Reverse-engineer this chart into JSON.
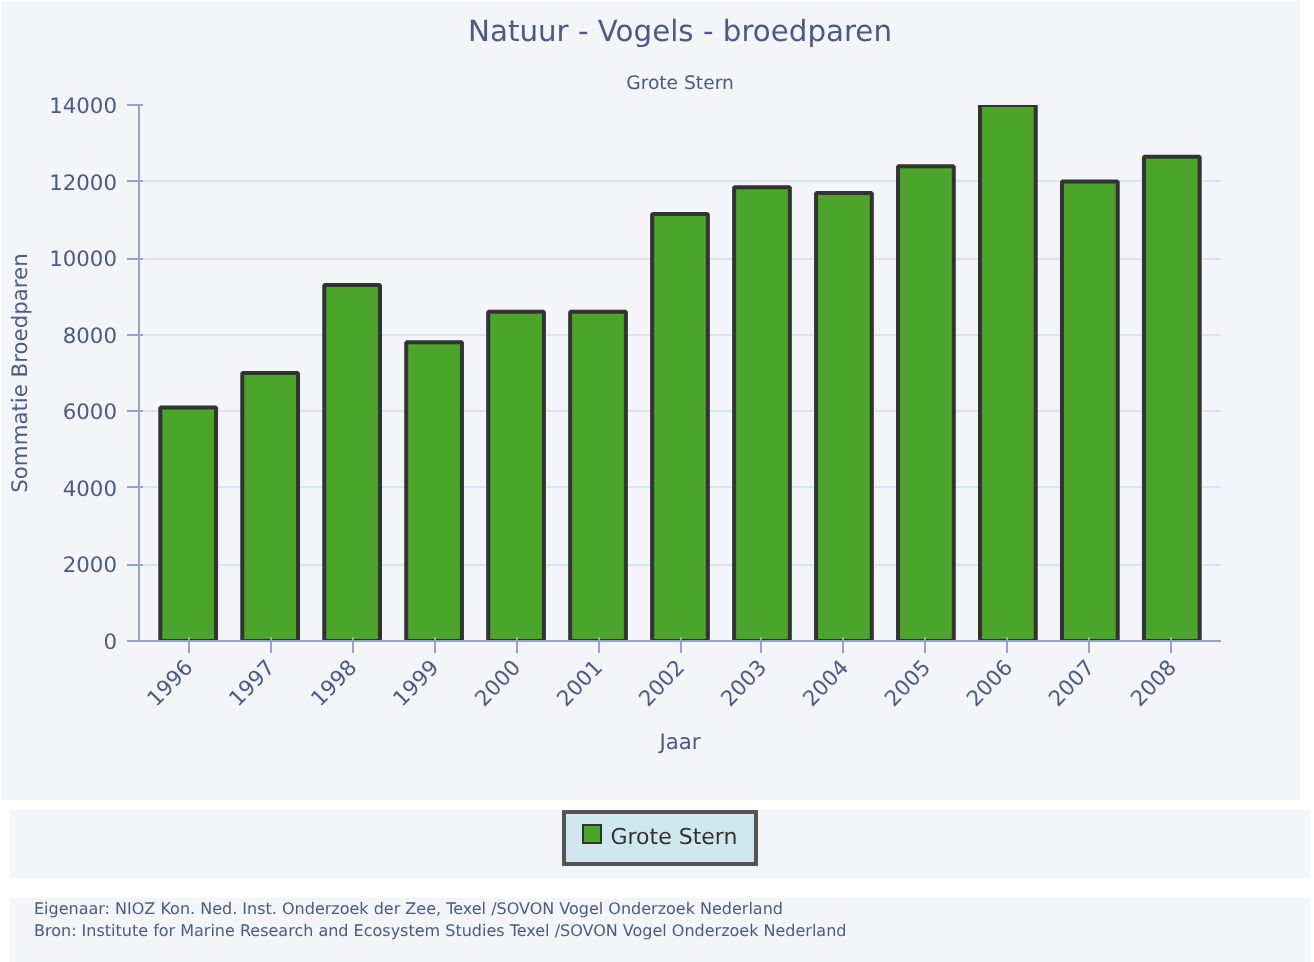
{
  "chart_data": {
    "type": "bar",
    "title": "Natuur - Vogels - broedparen",
    "subtitle": "Grote Stern",
    "xlabel": "Jaar",
    "ylabel": "Sommatie Broedparen",
    "categories": [
      "1996",
      "1997",
      "1998",
      "1999",
      "2000",
      "2001",
      "2002",
      "2003",
      "2004",
      "2005",
      "2006",
      "2007",
      "2008"
    ],
    "series": [
      {
        "name": "Grote Stern",
        "color": "#4aa52a",
        "values": [
          6100,
          7000,
          9300,
          7800,
          8600,
          8600,
          11150,
          11850,
          11700,
          12400,
          14000,
          12000,
          12650
        ]
      }
    ],
    "ylim": [
      0,
      14000
    ],
    "yticks": [
      0,
      2000,
      4000,
      6000,
      8000,
      10000,
      12000,
      14000
    ],
    "grid": "y",
    "legend": "bottom",
    "annotations": [
      "Eigenaar: NIOZ Kon. Ned. Inst. Onderzoek der Zee, Texel /SOVON Vogel Onderzoek Nederland",
      "Bron: Institute for Marine Research and Ecosystem Studies Texel /SOVON Vogel Onderzoek Nederland"
    ]
  }
}
